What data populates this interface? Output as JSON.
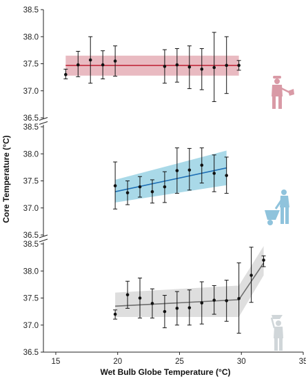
{
  "chart_data": {
    "type": "scatter",
    "title": "",
    "xlabel": "Wet Bulb Globe Temperature (°C)",
    "ylabel": "Core Temperature (°C)",
    "x_ticks": [
      15,
      20,
      25,
      30,
      35
    ],
    "xlim": [
      14,
      35
    ],
    "ylim": [
      36.5,
      38.5
    ],
    "y_ticks": [
      36.5,
      37.0,
      37.5,
      38.0,
      38.5
    ],
    "panels": [
      {
        "name": "panel-top",
        "color": "#c0273a",
        "band_color": "#e2a3ac",
        "icon": "worker-shovel-icon",
        "icon_color": "#d99aa6",
        "fit": {
          "x": [
            15.8,
            29.8
          ],
          "y": [
            37.47,
            37.47
          ],
          "lower": [
            37.28,
            37.28
          ],
          "upper": [
            37.65,
            37.65
          ]
        },
        "points": [
          {
            "x": 15.8,
            "y": 37.3,
            "lo": 37.22,
            "hi": 37.4
          },
          {
            "x": 16.8,
            "y": 37.48,
            "lo": 37.26,
            "hi": 37.73
          },
          {
            "x": 17.8,
            "y": 37.57,
            "lo": 37.14,
            "hi": 38.0
          },
          {
            "x": 18.8,
            "y": 37.48,
            "lo": 37.22,
            "hi": 37.74
          },
          {
            "x": 19.8,
            "y": 37.55,
            "lo": 37.27,
            "hi": 37.83
          },
          {
            "x": 23.8,
            "y": 37.45,
            "lo": 37.14,
            "hi": 37.76
          },
          {
            "x": 24.8,
            "y": 37.48,
            "lo": 37.16,
            "hi": 37.78
          },
          {
            "x": 25.8,
            "y": 37.44,
            "lo": 37.04,
            "hi": 37.83
          },
          {
            "x": 26.8,
            "y": 37.4,
            "lo": 37.02,
            "hi": 37.78
          },
          {
            "x": 27.8,
            "y": 37.43,
            "lo": 36.8,
            "hi": 38.08
          },
          {
            "x": 28.8,
            "y": 37.47,
            "lo": 36.95,
            "hi": 38.0
          },
          {
            "x": 29.8,
            "y": 37.47,
            "lo": 37.38,
            "hi": 37.56
          }
        ]
      },
      {
        "name": "panel-middle",
        "color": "#1f6fb5",
        "band_color": "#8ccce0",
        "icon": "worker-wheelbarrow-icon",
        "icon_color": "#8fc3dc",
        "fit": {
          "x": [
            19.8,
            28.8
          ],
          "y": [
            37.3,
            37.74
          ],
          "lower": [
            37.1,
            37.42
          ],
          "upper": [
            37.52,
            38.06
          ]
        },
        "points": [
          {
            "x": 19.8,
            "y": 37.41,
            "lo": 36.98,
            "hi": 37.85
          },
          {
            "x": 20.8,
            "y": 37.28,
            "lo": 37.06,
            "hi": 37.5
          },
          {
            "x": 21.8,
            "y": 37.39,
            "lo": 37.2,
            "hi": 37.58
          },
          {
            "x": 22.8,
            "y": 37.3,
            "lo": 37.09,
            "hi": 37.52
          },
          {
            "x": 23.8,
            "y": 37.39,
            "lo": 37.1,
            "hi": 37.67
          },
          {
            "x": 24.8,
            "y": 37.69,
            "lo": 37.27,
            "hi": 38.11
          },
          {
            "x": 25.8,
            "y": 37.7,
            "lo": 37.33,
            "hi": 38.1
          },
          {
            "x": 26.8,
            "y": 37.79,
            "lo": 37.46,
            "hi": 38.11
          },
          {
            "x": 27.8,
            "y": 37.64,
            "lo": 37.3,
            "hi": 37.98
          },
          {
            "x": 28.8,
            "y": 37.6,
            "lo": 37.27,
            "hi": 37.94
          }
        ]
      },
      {
        "name": "panel-bottom",
        "color": "#6e6e6e",
        "band_color": "#d3d3d3",
        "icon": "worker-carrying-icon",
        "icon_color": "#d0d6d9",
        "fit": {
          "x": [
            19.8,
            29.8,
            31.8
          ],
          "y": [
            37.35,
            37.47,
            38.15
          ],
          "lower": [
            37.15,
            37.15,
            37.92
          ],
          "upper": [
            37.6,
            37.73,
            38.46
          ]
        },
        "points": [
          {
            "x": 19.8,
            "y": 37.2,
            "lo": 37.11,
            "hi": 37.28
          },
          {
            "x": 20.8,
            "y": 37.56,
            "lo": 37.31,
            "hi": 37.81
          },
          {
            "x": 21.8,
            "y": 37.5,
            "lo": 37.13,
            "hi": 37.87
          },
          {
            "x": 22.8,
            "y": 37.4,
            "lo": 37.13,
            "hi": 37.67
          },
          {
            "x": 23.8,
            "y": 37.25,
            "lo": 36.95,
            "hi": 37.55
          },
          {
            "x": 24.8,
            "y": 37.31,
            "lo": 37.0,
            "hi": 37.62
          },
          {
            "x": 25.8,
            "y": 37.32,
            "lo": 37.0,
            "hi": 37.65
          },
          {
            "x": 26.8,
            "y": 37.41,
            "lo": 37.02,
            "hi": 37.8
          },
          {
            "x": 27.8,
            "y": 37.46,
            "lo": 37.2,
            "hi": 37.73
          },
          {
            "x": 28.8,
            "y": 37.45,
            "lo": 37.07,
            "hi": 37.83
          },
          {
            "x": 29.8,
            "y": 37.49,
            "lo": 36.85,
            "hi": 38.15
          },
          {
            "x": 30.8,
            "y": 37.92,
            "lo": 37.42,
            "hi": 38.44
          },
          {
            "x": 31.8,
            "y": 38.2,
            "lo": 38.08,
            "hi": 38.28
          }
        ]
      }
    ]
  }
}
